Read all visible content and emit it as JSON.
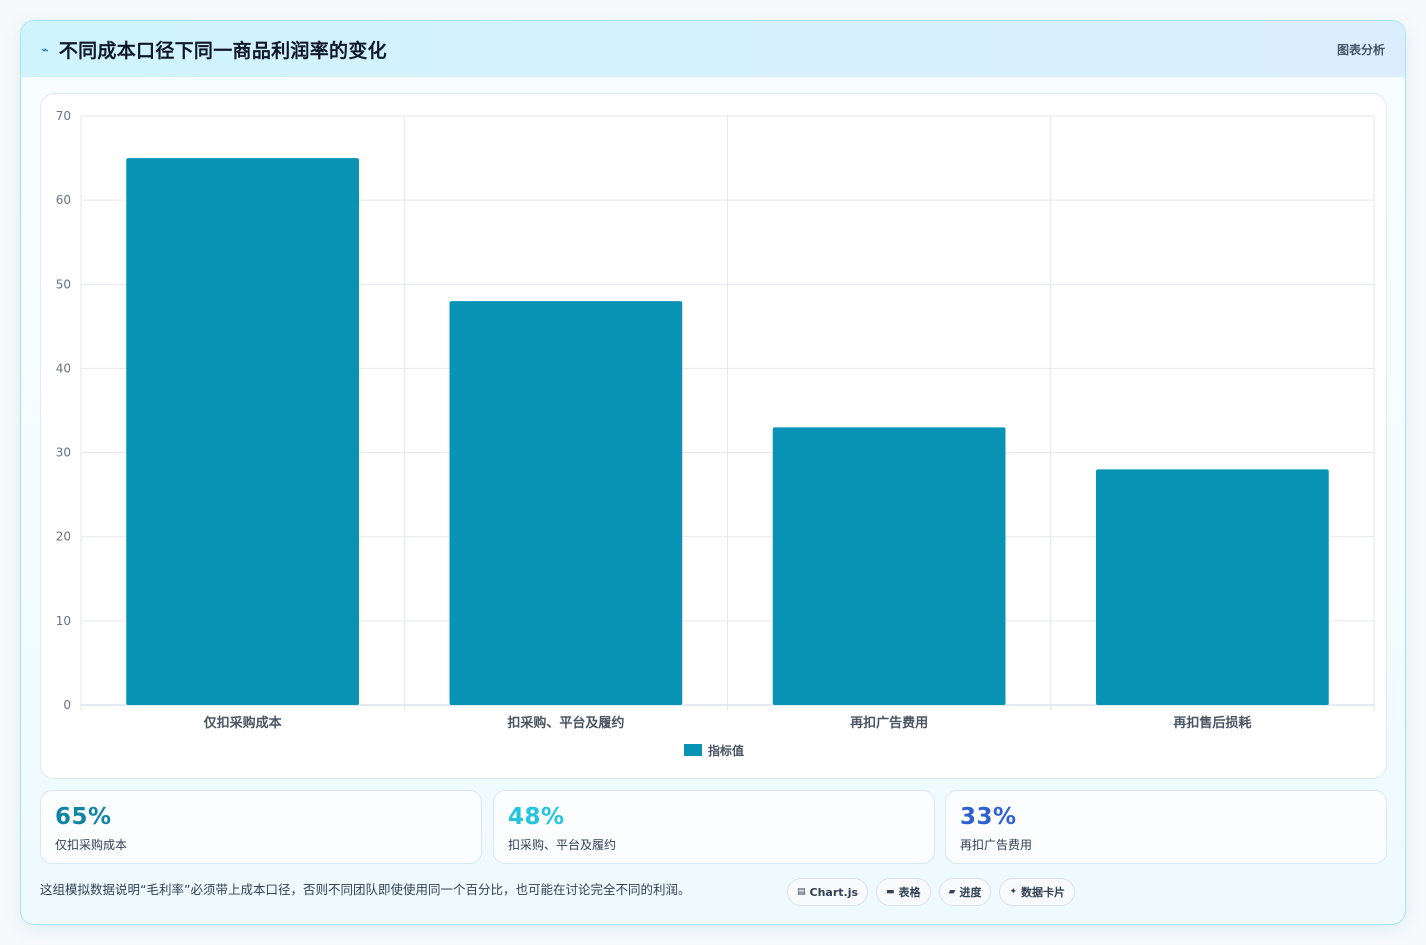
{
  "header": {
    "icon": "pulse-icon",
    "title": "不同成本口径下同一商品利润率的变化",
    "tag": "图表分析"
  },
  "chart_data": {
    "type": "bar",
    "title": "",
    "xlabel": "",
    "ylabel": "",
    "categories": [
      "仅扣采购成本",
      "扣采购、平台及履约",
      "再扣广告费用",
      "再扣售后损耗"
    ],
    "series": [
      {
        "name": "指标值",
        "values": [
          65,
          48,
          33,
          28
        ],
        "color": "#0893b5"
      }
    ],
    "ylim": [
      0,
      70
    ],
    "yticks": [
      0,
      10,
      20,
      30,
      40,
      50,
      60,
      70
    ],
    "grid": true,
    "legend": "bottom"
  },
  "stats": [
    {
      "value": "65%",
      "label": "仅扣采购成本",
      "color": "#0e86a3"
    },
    {
      "value": "48%",
      "label": "扣采购、平台及履约",
      "color": "#22c5dc"
    },
    {
      "value": "33%",
      "label": "再扣广告费用",
      "color": "#2f5fd0"
    }
  ],
  "footer": {
    "note": "这组模拟数据说明“毛利率”必须带上成本口径，否则不同团队即使使用同一个百分比，也可能在讨论完全不同的利润。",
    "tags": [
      {
        "icon": "chart-icon",
        "glyph": "▤",
        "label": "Chart.js"
      },
      {
        "icon": "table-icon",
        "glyph": "▬",
        "label": "表格"
      },
      {
        "icon": "progress-icon",
        "glyph": "▰",
        "label": "进度"
      },
      {
        "icon": "sparkle-icon",
        "glyph": "✦",
        "label": "数据卡片"
      }
    ]
  }
}
